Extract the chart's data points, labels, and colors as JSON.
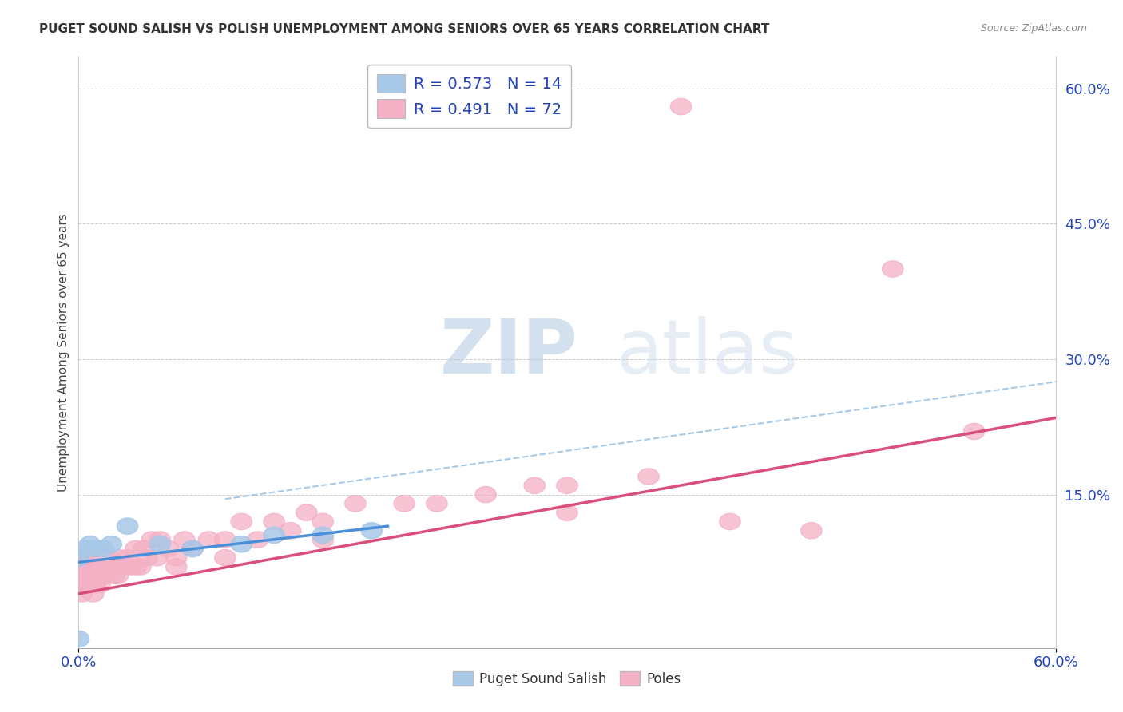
{
  "title": "PUGET SOUND SALISH VS POLISH UNEMPLOYMENT AMONG SENIORS OVER 65 YEARS CORRELATION CHART",
  "source": "Source: ZipAtlas.com",
  "ylabel": "Unemployment Among Seniors over 65 years",
  "legend1_label": "R = 0.573   N = 14",
  "legend2_label": "R = 0.491   N = 72",
  "color_salish": "#a8c8e8",
  "color_poles": "#f4b0c4",
  "color_salish_line": "#4a90d9",
  "color_poles_line": "#d94f7a",
  "color_dashed": "#90bce0",
  "xlim": [
    0.0,
    0.6
  ],
  "ylim": [
    -0.02,
    0.635
  ],
  "right_ytick_vals": [
    0.15,
    0.3,
    0.45,
    0.6
  ],
  "right_ytick_labels": [
    "15.0%",
    "30.0%",
    "45.0%",
    "60.0%"
  ],
  "xtick_vals": [
    0.0,
    0.6
  ],
  "xtick_labels": [
    "0.0%",
    "60.0%"
  ],
  "watermark_zip": "ZIP",
  "watermark_atlas": "atlas",
  "salish_x": [
    0.0,
    0.004,
    0.007,
    0.01,
    0.015,
    0.02,
    0.03,
    0.05,
    0.07,
    0.1,
    0.12,
    0.15,
    0.18,
    0.0
  ],
  "salish_y": [
    0.08,
    0.09,
    0.095,
    0.09,
    0.09,
    0.095,
    0.115,
    0.095,
    0.09,
    0.095,
    0.105,
    0.105,
    0.11,
    -0.01
  ],
  "poles_x": [
    0.0,
    0.0,
    0.001,
    0.001,
    0.002,
    0.002,
    0.003,
    0.003,
    0.004,
    0.004,
    0.005,
    0.005,
    0.006,
    0.007,
    0.008,
    0.009,
    0.01,
    0.01,
    0.012,
    0.013,
    0.015,
    0.016,
    0.018,
    0.02,
    0.022,
    0.025,
    0.027,
    0.03,
    0.032,
    0.035,
    0.038,
    0.04,
    0.042,
    0.045,
    0.048,
    0.05,
    0.055,
    0.06,
    0.065,
    0.07,
    0.08,
    0.09,
    0.1,
    0.11,
    0.12,
    0.13,
    0.14,
    0.15,
    0.17,
    0.2,
    0.22,
    0.25,
    0.28,
    0.3,
    0.35,
    0.37,
    0.4,
    0.45,
    0.5,
    0.55,
    0.001,
    0.003,
    0.006,
    0.009,
    0.012,
    0.018,
    0.024,
    0.035,
    0.06,
    0.09,
    0.15,
    0.3
  ],
  "poles_y": [
    0.05,
    0.07,
    0.06,
    0.08,
    0.04,
    0.07,
    0.05,
    0.08,
    0.06,
    0.07,
    0.06,
    0.08,
    0.05,
    0.07,
    0.06,
    0.04,
    0.05,
    0.07,
    0.06,
    0.05,
    0.07,
    0.06,
    0.08,
    0.07,
    0.06,
    0.08,
    0.07,
    0.08,
    0.07,
    0.09,
    0.07,
    0.09,
    0.08,
    0.1,
    0.08,
    0.1,
    0.09,
    0.08,
    0.1,
    0.09,
    0.1,
    0.1,
    0.12,
    0.1,
    0.12,
    0.11,
    0.13,
    0.12,
    0.14,
    0.14,
    0.14,
    0.15,
    0.16,
    0.16,
    0.17,
    0.58,
    0.12,
    0.11,
    0.4,
    0.22,
    0.06,
    0.07,
    0.06,
    0.07,
    0.06,
    0.07,
    0.06,
    0.07,
    0.07,
    0.08,
    0.1,
    0.13
  ],
  "salish_regline_x": [
    0.0,
    0.19
  ],
  "salish_regline_y": [
    0.075,
    0.115
  ],
  "poles_regline_x": [
    0.0,
    0.6
  ],
  "poles_regline_y": [
    0.04,
    0.235
  ],
  "dashed_line_x": [
    0.09,
    0.6
  ],
  "dashed_line_y": [
    0.145,
    0.275
  ]
}
